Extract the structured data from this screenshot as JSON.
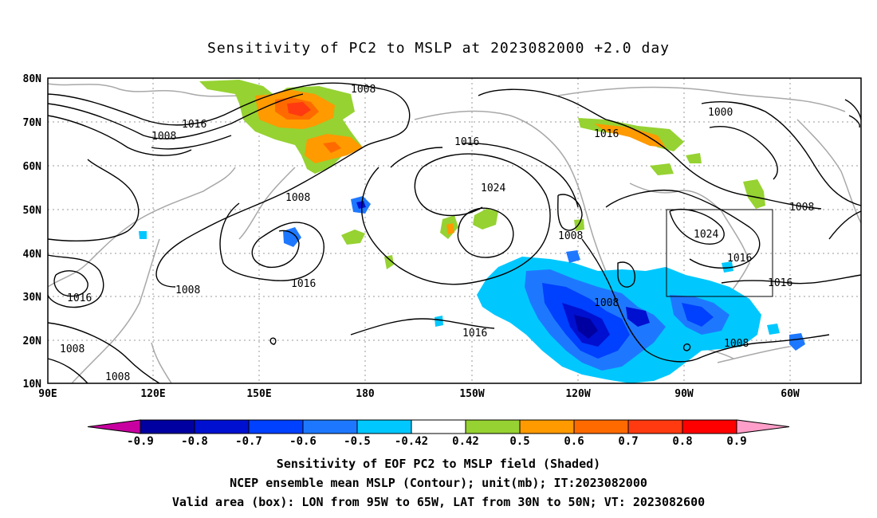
{
  "title": "Sensitivity of PC2 to MSLP at 2023082000 +2.0 day",
  "lat_labels": [
    "80N",
    "70N",
    "60N",
    "50N",
    "40N",
    "30N",
    "20N",
    "10N"
  ],
  "lon_labels": [
    "90E",
    "120E",
    "150E",
    "180",
    "150W",
    "120W",
    "90W",
    "60W"
  ],
  "contour_labels": [
    "1008",
    "1016",
    "1008",
    "1000",
    "1016",
    "1016",
    "1008",
    "1024",
    "1008",
    "1008",
    "1024",
    "1016",
    "1016",
    "1008",
    "1016",
    "1008",
    "1016",
    "1016",
    "1008",
    "1008",
    "1008"
  ],
  "colorbar": {
    "labels": [
      "-0.9",
      "-0.8",
      "-0.7",
      "-0.6",
      "-0.5",
      "-0.42",
      "0.42",
      "0.5",
      "0.6",
      "0.7",
      "0.8",
      "0.9"
    ],
    "colors": [
      "#0000a0",
      "#0010d0",
      "#0040ff",
      "#1e78ff",
      "#00c8ff",
      "#ffffff",
      "#96d232",
      "#ff9a00",
      "#ff6a00",
      "#ff3a10",
      "#ff0000"
    ],
    "under_color": "#c800a0",
    "over_color": "#ff9ec8"
  },
  "valid_box": {
    "lon": [
      "95W",
      "65W"
    ],
    "lat": [
      "30N",
      "50N"
    ]
  },
  "captions": {
    "line1": "Sensitivity of EOF PC2 to MSLP field (Shaded)",
    "line2": "NCEP ensemble mean MSLP (Contour); unit(mb); IT:2023082000",
    "line3": "Valid area (box): LON from 95W to 65W, LAT from 30N to 50N; VT: 2023082600"
  }
}
